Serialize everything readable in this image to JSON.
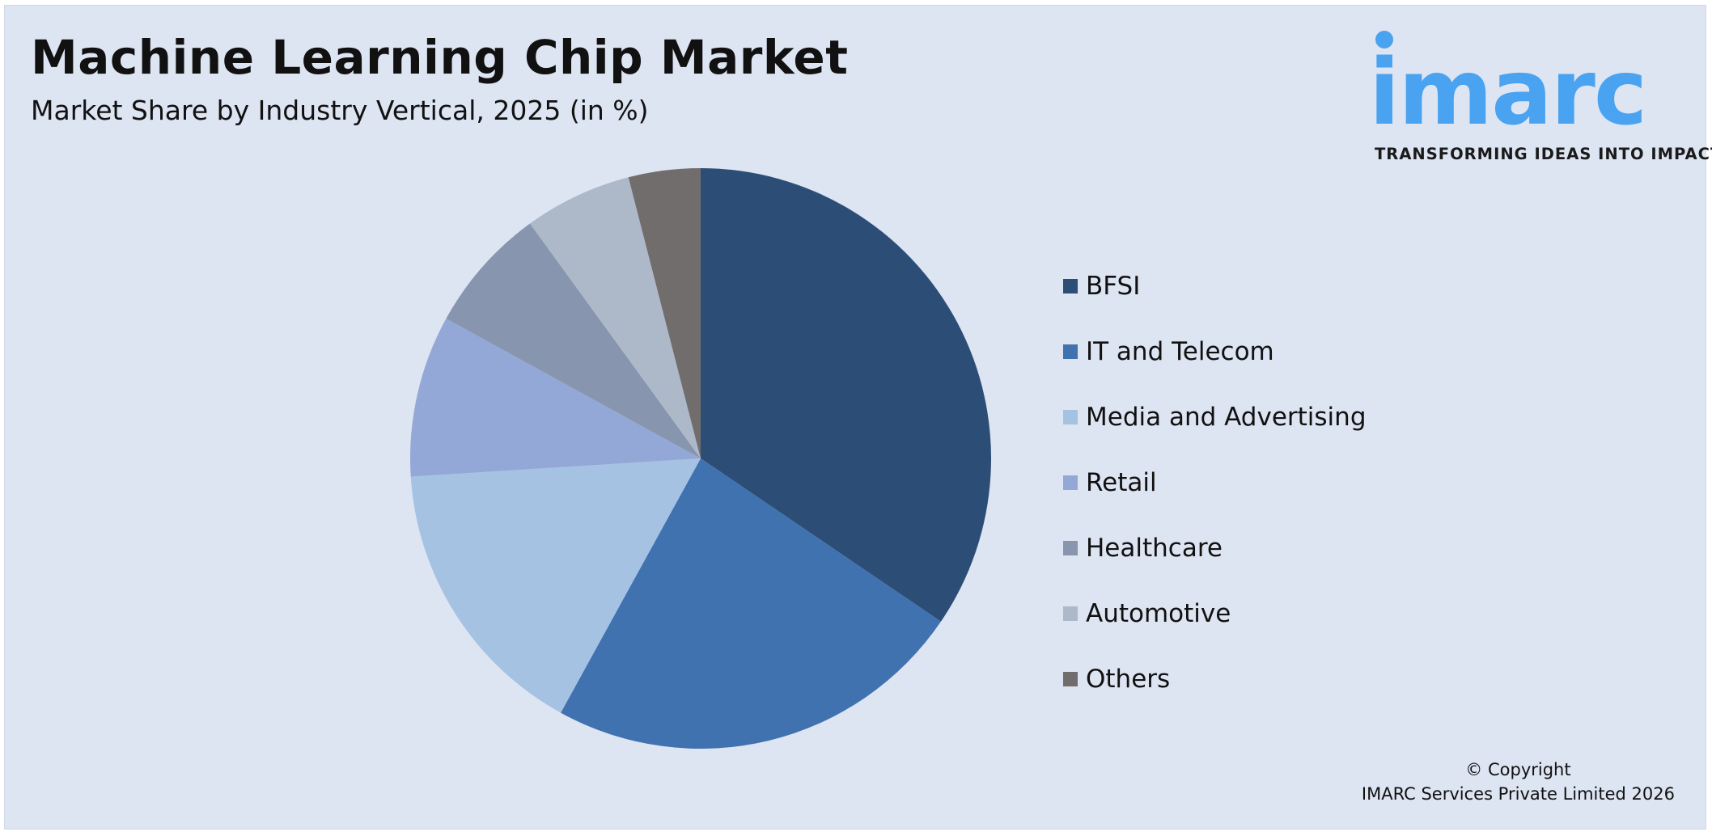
{
  "header": {
    "title": "Machine Learning Chip Market",
    "subtitle": "Market Share by Industry Vertical, 2025 (in %)"
  },
  "logo": {
    "wordmark": "imarc",
    "tagline": "TRANSFORMING IDEAS INTO IMPACT",
    "color": "#4aa3f0"
  },
  "footer": {
    "copyright_line1": "© Copyright",
    "copyright_line2": "IMARC Services Private Limited 2026"
  },
  "chart_data": {
    "type": "pie",
    "title": "Machine Learning Chip Market",
    "subtitle": "Market Share by Industry Vertical, 2025 (in %)",
    "start_angle_deg": 0,
    "direction": "clockwise",
    "legend_position": "right",
    "slices": [
      {
        "label": "BFSI",
        "value": 34.5,
        "color": "#2c4e76"
      },
      {
        "label": "IT and Telecom",
        "value": 23.5,
        "color": "#3f72ae"
      },
      {
        "label": "Media and Advertising",
        "value": 16.0,
        "color": "#a6c2e2"
      },
      {
        "label": "Retail",
        "value": 9.0,
        "color": "#94a8d7"
      },
      {
        "label": "Healthcare",
        "value": 7.0,
        "color": "#8796ae"
      },
      {
        "label": "Automotive",
        "value": 6.0,
        "color": "#adb8c9"
      },
      {
        "label": "Others",
        "value": 4.0,
        "color": "#716d6d"
      }
    ]
  }
}
